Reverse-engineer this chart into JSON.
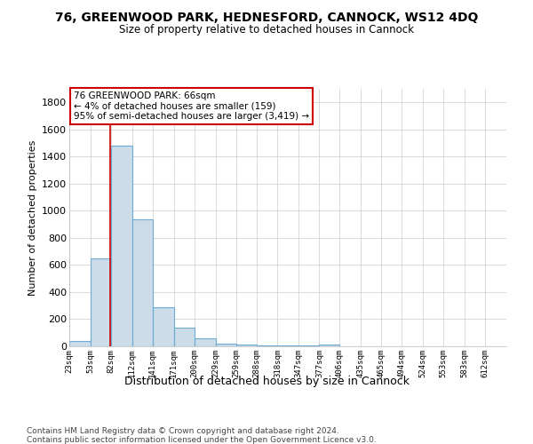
{
  "title": "76, GREENWOOD PARK, HEDNESFORD, CANNOCK, WS12 4DQ",
  "subtitle": "Size of property relative to detached houses in Cannock",
  "xlabel": "Distribution of detached houses by size in Cannock",
  "ylabel": "Number of detached properties",
  "footnote1": "Contains HM Land Registry data © Crown copyright and database right 2024.",
  "footnote2": "Contains public sector information licensed under the Open Government Licence v3.0.",
  "annotation_line1": "76 GREENWOOD PARK: 66sqm",
  "annotation_line2": "← 4% of detached houses are smaller (159)",
  "annotation_line3": "95% of semi-detached houses are larger (3,419) →",
  "bar_color": "#ccdce8",
  "bar_edge_color": "#6aaad4",
  "red_line_x": 66,
  "categories": [
    "23sqm",
    "53sqm",
    "82sqm",
    "112sqm",
    "141sqm",
    "171sqm",
    "200sqm",
    "229sqm",
    "259sqm",
    "288sqm",
    "318sqm",
    "347sqm",
    "377sqm",
    "406sqm",
    "435sqm",
    "465sqm",
    "494sqm",
    "524sqm",
    "553sqm",
    "583sqm",
    "612sqm"
  ],
  "bin_edges": [
    8,
    38,
    67,
    97,
    126,
    156,
    185,
    215,
    244,
    273,
    303,
    332,
    362,
    391,
    421,
    450,
    479,
    509,
    538,
    568,
    597,
    627
  ],
  "values": [
    38,
    648,
    1480,
    940,
    290,
    135,
    60,
    20,
    10,
    5,
    5,
    5,
    10,
    3,
    1,
    1,
    1,
    0,
    0,
    0,
    0
  ],
  "ylim": [
    0,
    1900
  ],
  "yticks": [
    0,
    200,
    400,
    600,
    800,
    1000,
    1200,
    1400,
    1600,
    1800
  ],
  "annotation_box_color": "white",
  "annotation_box_edge_color": "#cc0000",
  "red_line_color": "#cc0000"
}
